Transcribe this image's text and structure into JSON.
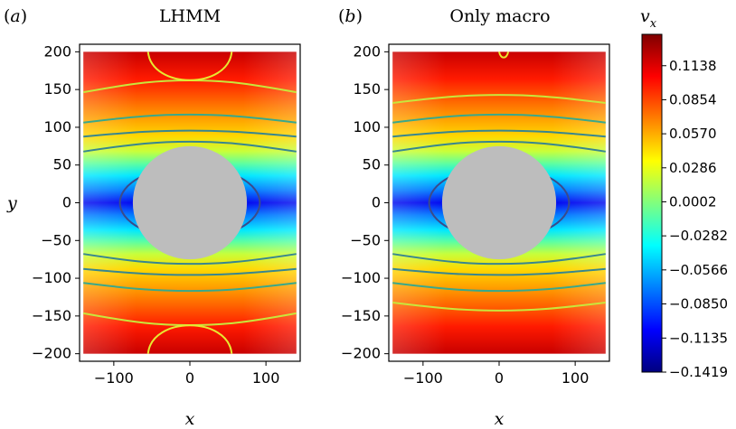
{
  "chart_data": [
    {
      "type": "heatmap",
      "panel_label": "(a)",
      "panel_letter": "a",
      "title": "LHMM",
      "xlabel": "x",
      "ylabel": "y",
      "xlim": [
        -145,
        145
      ],
      "ylim": [
        -210,
        210
      ],
      "xticks": [
        -100,
        0,
        100
      ],
      "yticks": [
        200,
        150,
        100,
        50,
        0,
        -50,
        -100,
        -150,
        -200
      ],
      "field": "v_x",
      "obstacle": {
        "shape": "circle",
        "center": [
          0,
          0
        ],
        "radius": 75
      },
      "contour_levels": [
        -0.1135,
        -0.085,
        -0.0566,
        -0.0282,
        0.0002,
        0.0286,
        0.057,
        0.0854,
        0.1138
      ]
    },
    {
      "type": "heatmap",
      "panel_label": "(b)",
      "panel_letter": "b",
      "title": "Only macro",
      "xlabel": "x",
      "ylabel": "",
      "xlim": [
        -145,
        145
      ],
      "ylim": [
        -210,
        210
      ],
      "xticks": [
        -100,
        0,
        100
      ],
      "yticks": [
        200,
        150,
        100,
        50,
        0,
        -50,
        -100,
        -150,
        -200
      ],
      "field": "v_x",
      "obstacle": {
        "shape": "circle",
        "center": [
          0,
          0
        ],
        "radius": 75
      },
      "contour_levels": [
        -0.1135,
        -0.085,
        -0.0566,
        -0.0282,
        0.0002,
        0.0286,
        0.057,
        0.0854,
        0.1138
      ]
    }
  ],
  "colorbar": {
    "label": "v",
    "label_sub": "x",
    "colormap": "jet",
    "range": [
      -0.1419,
      0.14
    ],
    "ticks": [
      0.1138,
      0.0854,
      0.057,
      0.0286,
      0.0002,
      -0.0282,
      -0.0566,
      -0.085,
      -0.1135,
      -0.1419
    ],
    "tick_labels": [
      "0.1138",
      "0.0854",
      "0.0570",
      "0.0286",
      "0.0002",
      "−0.0282",
      "−0.0566",
      "−0.0850",
      "−0.1135",
      "−0.1419"
    ]
  },
  "colors": {
    "obstacle": "#bdbdbd",
    "axes": "#000000",
    "jet_stops": [
      "#00007f",
      "#0000ff",
      "#007fff",
      "#00ffff",
      "#7fff7f",
      "#ffff00",
      "#ff7f00",
      "#ff0000",
      "#7f0000"
    ]
  }
}
